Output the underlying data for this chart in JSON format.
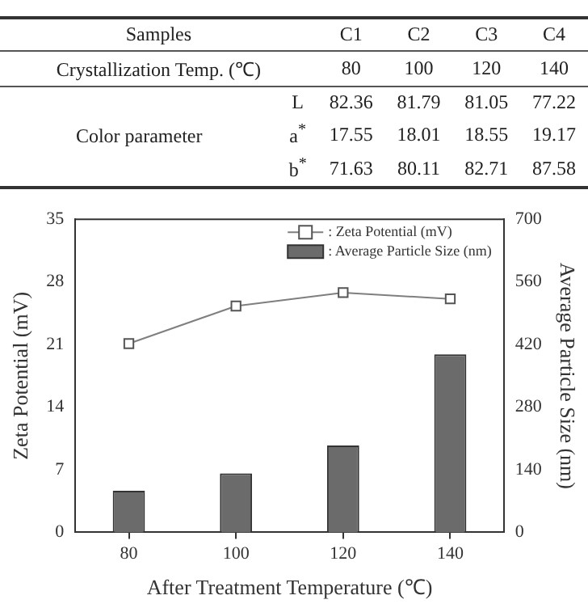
{
  "chart_data": {
    "type": "bar",
    "xlabel": "After Treatment Temperature (℃)",
    "ylabel": "Zeta Potential (mV)",
    "y2label": "Average Particle Size (nm)",
    "categories": [
      "80",
      "100",
      "120",
      "140"
    ],
    "series": [
      {
        "name": ": Zeta Potential (mV)",
        "type": "line",
        "color": "#7f7f7f",
        "values": [
          21.1,
          25.3,
          26.8,
          26.1
        ]
      },
      {
        "name": ": Average Particle Size (nm)",
        "color": "#6b6b6b",
        "axis": "y2",
        "values": [
          93,
          132,
          194,
          398
        ]
      }
    ],
    "ylim": [
      0,
      35
    ],
    "yticks": [
      0,
      7,
      14,
      21,
      28,
      35
    ],
    "y2lim": [
      0,
      700
    ],
    "y2ticks": [
      0,
      140,
      280,
      420,
      560,
      700
    ],
    "grid": false,
    "legend": "top right",
    "marker": "square",
    "annotations": [
      "Samples",
      "C1",
      "C2",
      "C3",
      "C4",
      "Crystallization  Temp. (℃)",
      "80",
      "100",
      "120",
      "140",
      "Color parameter",
      "L",
      "82.36",
      "81.79",
      "81.05",
      "77.22",
      "a$^{*}$",
      "17.55",
      "18.01",
      "18.55",
      "19.17",
      "b$^{*}$",
      "71.63",
      "80.11",
      "82.71",
      "87.58"
    ]
  }
}
